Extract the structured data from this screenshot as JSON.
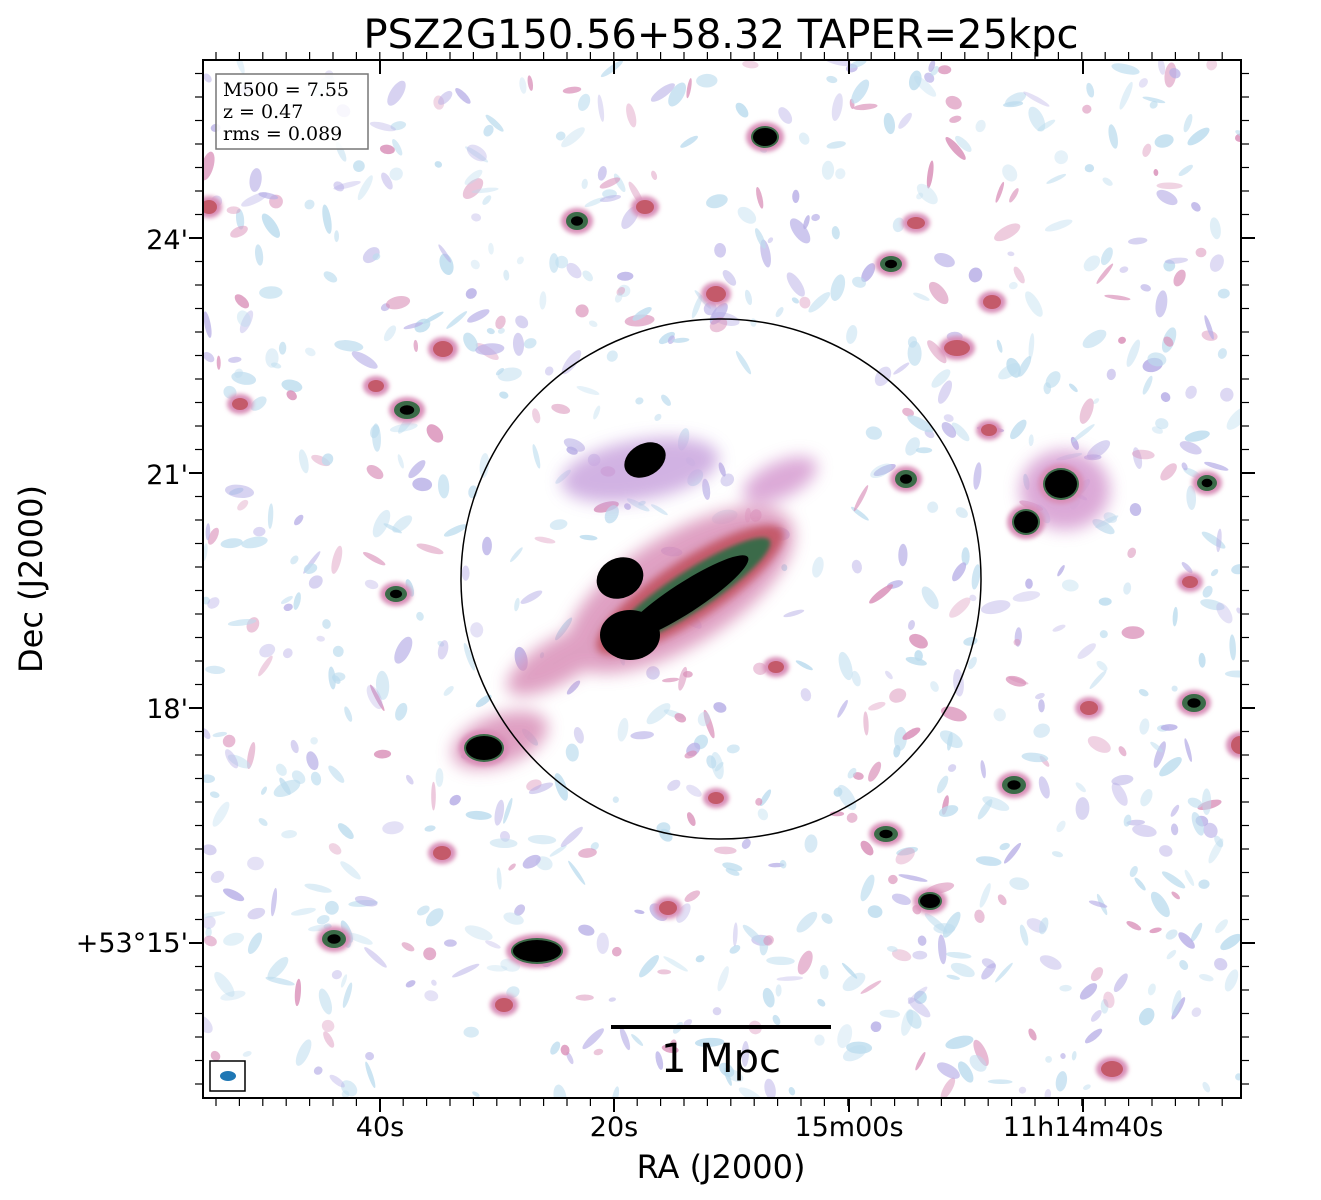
{
  "title": "PSZ2G150.56+58.32 TAPER=25kpc",
  "info_box": {
    "lines": [
      "M500 = 7.55",
      "z = 0.47",
      "rms = 0.089"
    ]
  },
  "axes": {
    "xlabel": "RA (J2000)",
    "ylabel": "Dec (J2000)",
    "xticks": [
      "40s",
      "20s",
      "15m00s",
      "11h14m40s"
    ],
    "yticks": [
      "+53°15'",
      "18'",
      "21'",
      "24'"
    ]
  },
  "scale_bar": {
    "label": "1 Mpc"
  },
  "colors": {
    "background": "#ffffff",
    "noise_light": "#bcdcee",
    "noise_lavender": "#b7aee6",
    "emission_pink": "#d98fb8",
    "emission_red": "#c45a6a",
    "emission_green": "#3b6b48",
    "core_black": "#000000",
    "beam": "#1f77b4"
  }
}
